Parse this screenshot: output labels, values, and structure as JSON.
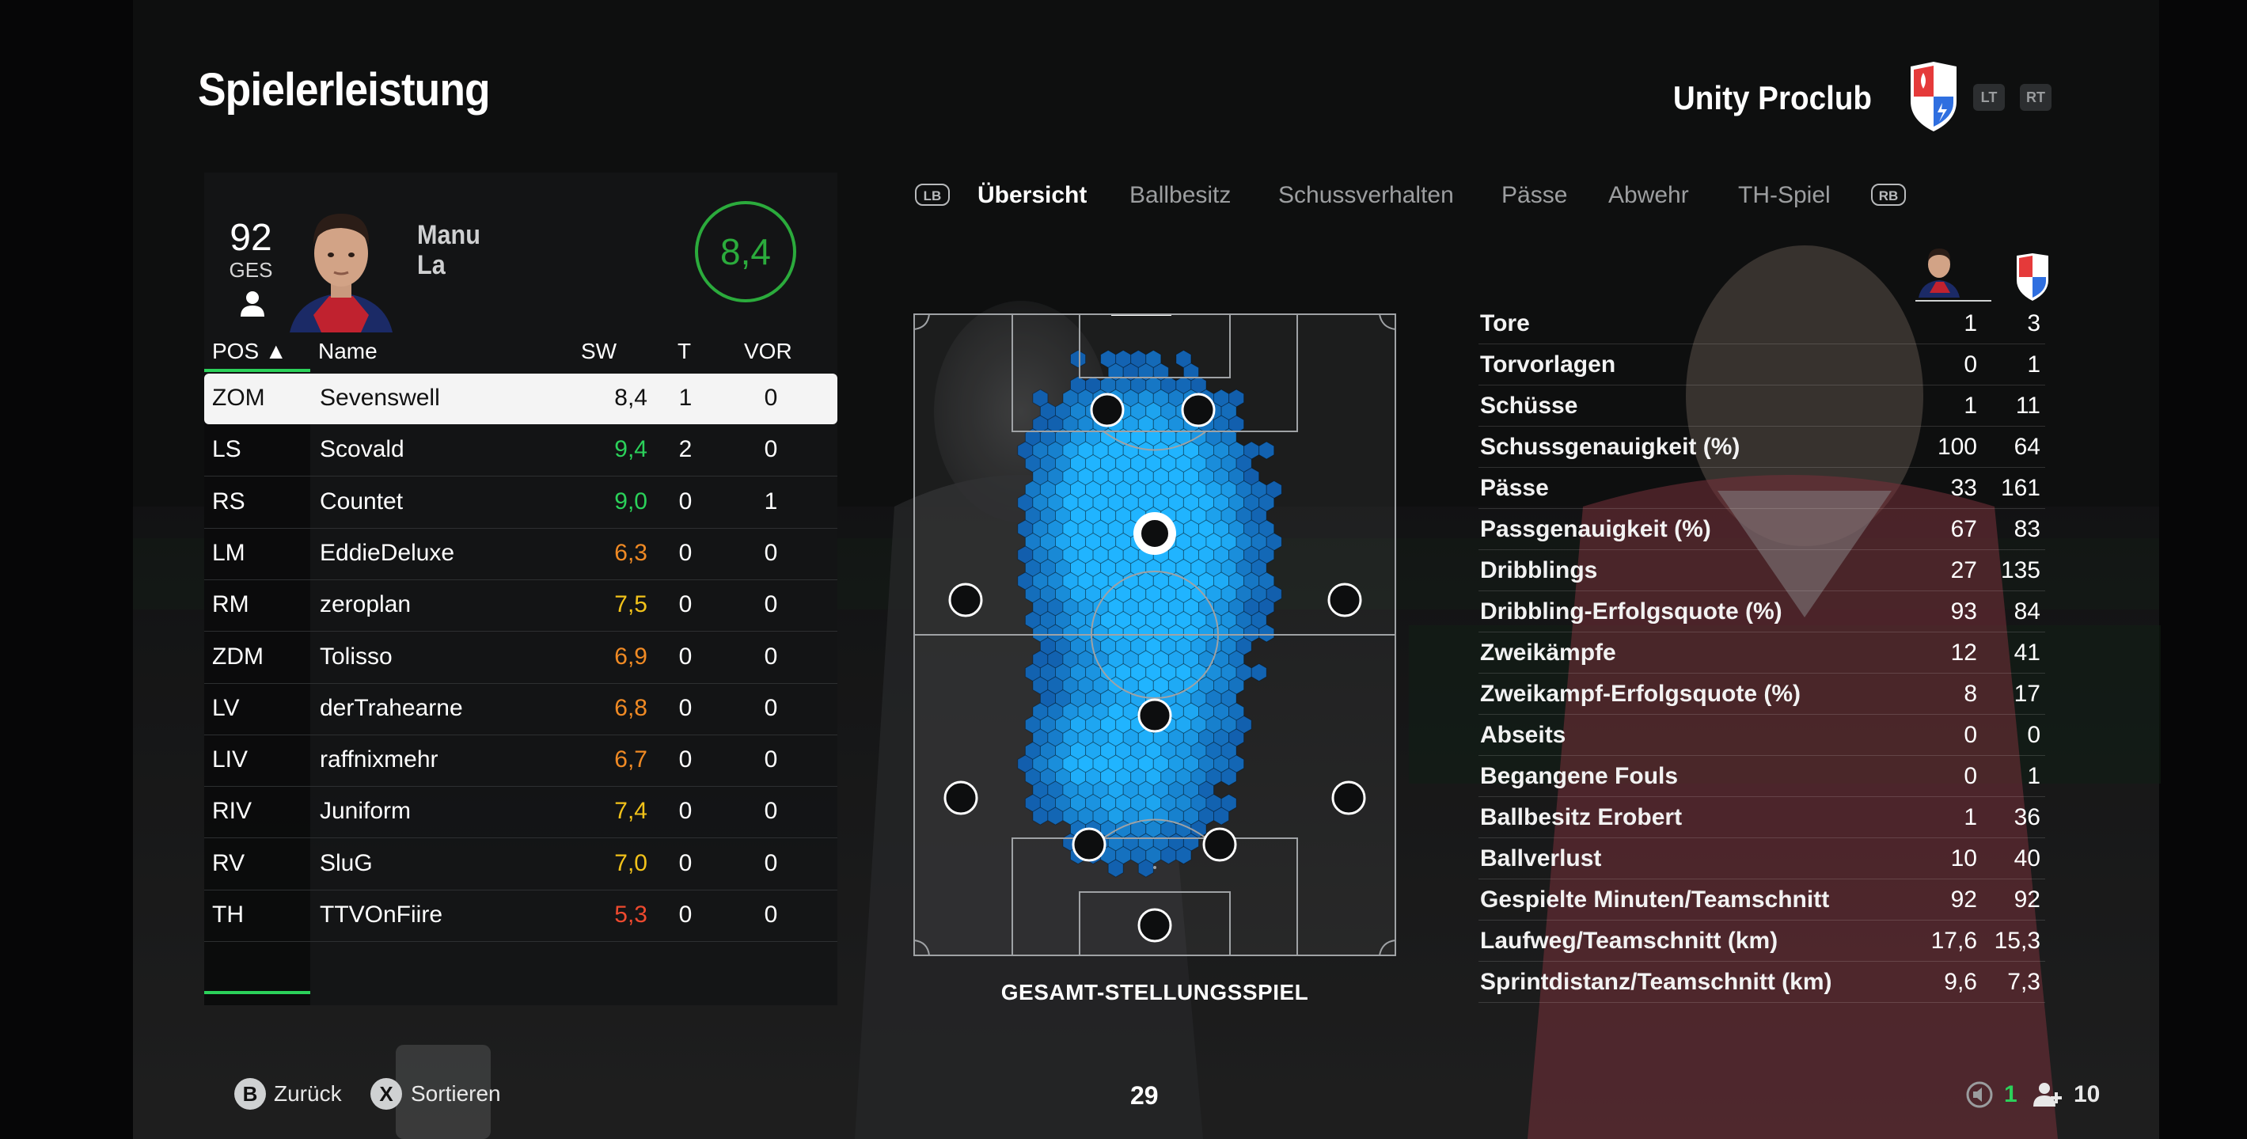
{
  "header": {
    "title": "Spielerleistung",
    "club_name": "Unity Proclub",
    "trigger_left": "LT",
    "trigger_right": "RT"
  },
  "player": {
    "overall": "92",
    "overall_label": "GES",
    "first_name": "Manu",
    "last_name": "La",
    "rating": "8,4"
  },
  "table": {
    "columns": [
      "POS ▲",
      "Name",
      "SW",
      "T",
      "VOR"
    ],
    "rows": [
      {
        "pos": "ZOM",
        "name": "Sevenswell",
        "sw": "8,4",
        "t": "1",
        "vor": "0",
        "color": "#111111"
      },
      {
        "pos": "LS",
        "name": "Scovald",
        "sw": "9,4",
        "t": "2",
        "vor": "0",
        "color": "#2bd15a"
      },
      {
        "pos": "RS",
        "name": "Countet",
        "sw": "9,0",
        "t": "0",
        "vor": "1",
        "color": "#2bd15a"
      },
      {
        "pos": "LM",
        "name": "EddieDeluxe",
        "sw": "6,3",
        "t": "0",
        "vor": "0",
        "color": "#f08a24"
      },
      {
        "pos": "RM",
        "name": "zeroplan",
        "sw": "7,5",
        "t": "0",
        "vor": "0",
        "color": "#f2c21a"
      },
      {
        "pos": "ZDM",
        "name": "Tolisso",
        "sw": "6,9",
        "t": "0",
        "vor": "0",
        "color": "#f08a24"
      },
      {
        "pos": "LV",
        "name": "derTrahearne",
        "sw": "6,8",
        "t": "0",
        "vor": "0",
        "color": "#f08a24"
      },
      {
        "pos": "LIV",
        "name": "raffnixmehr",
        "sw": "6,7",
        "t": "0",
        "vor": "0",
        "color": "#f08a24"
      },
      {
        "pos": "RIV",
        "name": "Juniform",
        "sw": "7,4",
        "t": "0",
        "vor": "0",
        "color": "#f2c21a"
      },
      {
        "pos": "RV",
        "name": "SluG",
        "sw": "7,0",
        "t": "0",
        "vor": "0",
        "color": "#f2c21a"
      },
      {
        "pos": "TH",
        "name": "TTVOnFiire",
        "sw": "5,3",
        "t": "0",
        "vor": "0",
        "color": "#ee4a2f"
      }
    ]
  },
  "tabs": {
    "left_bumper": "LB",
    "right_bumper": "RB",
    "items": [
      "Übersicht",
      "Ballbesitz",
      "Schussverhalten",
      "Pässe",
      "Abwehr",
      "TH-Spiel"
    ],
    "active": "Übersicht"
  },
  "pitch": {
    "caption": "GESAMT-STELLUNGSSPIEL"
  },
  "stats": [
    {
      "label": "Tore",
      "player": "1",
      "team": "3"
    },
    {
      "label": "Torvorlagen",
      "player": "0",
      "team": "1"
    },
    {
      "label": "Schüsse",
      "player": "1",
      "team": "11"
    },
    {
      "label": "Schussgenauigkeit (%)",
      "player": "100",
      "team": "64"
    },
    {
      "label": "Pässe",
      "player": "33",
      "team": "161"
    },
    {
      "label": "Passgenauigkeit (%)",
      "player": "67",
      "team": "83"
    },
    {
      "label": "Dribblings",
      "player": "27",
      "team": "135"
    },
    {
      "label": "Dribbling-Erfolgsquote (%)",
      "player": "93",
      "team": "84"
    },
    {
      "label": "Zweikämpfe",
      "player": "12",
      "team": "41"
    },
    {
      "label": "Zweikampf-Erfolgsquote (%)",
      "player": "8",
      "team": "17"
    },
    {
      "label": "Abseits",
      "player": "0",
      "team": "0"
    },
    {
      "label": "Begangene Fouls",
      "player": "0",
      "team": "1"
    },
    {
      "label": "Ballbesitz Erobert",
      "player": "1",
      "team": "36"
    },
    {
      "label": "Ballverlust",
      "player": "10",
      "team": "40"
    },
    {
      "label": "Gespielte Minuten/Teamschnitt",
      "player": "92",
      "team": "92"
    },
    {
      "label": "Laufweg/Teamschnitt (km)",
      "player": "17,6",
      "team": "15,3"
    },
    {
      "label": "Sprintdistanz/Teamschnitt (km)",
      "player": "9,6",
      "team": "7,3"
    }
  ],
  "footer": {
    "back_button": "B",
    "back_label": "Zurück",
    "sort_button": "X",
    "sort_label": "Sortieren",
    "page": "29",
    "count_active": "1",
    "count_total": "10"
  },
  "colors": {
    "accent_green": "#2bd15a",
    "rating_green": "#2bab3c",
    "heat_blue": "#1e9bff"
  }
}
